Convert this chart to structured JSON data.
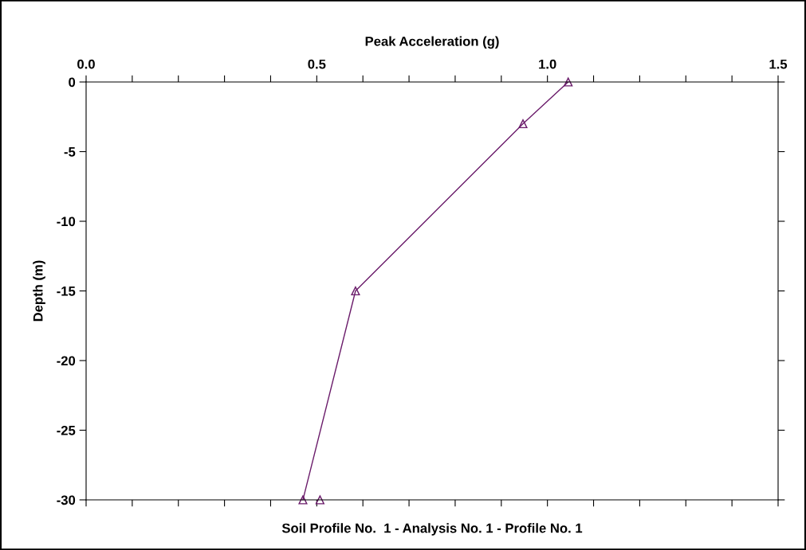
{
  "chart_data": {
    "type": "line",
    "xlabel": "Peak Acceleration (g)",
    "ylabel": "Depth (m)",
    "annotations": [
      "Soil Profile No.  1 - Analysis No. 1 - Profile No. 1"
    ],
    "series": [
      {
        "color": "#6a1b6a",
        "x": [
          1.045,
          0.947,
          0.584,
          0.47
        ],
        "values": [
          0,
          -3,
          -15,
          -30
        ]
      },
      {
        "type": "scatter",
        "color": "#6a1b6a",
        "x": [
          0.507
        ],
        "values": [
          -30
        ]
      }
    ],
    "marker": "triangle",
    "xlim": [
      0,
      1.5
    ],
    "ylim": [
      -30,
      0
    ],
    "xticks": [
      {
        "value": 0,
        "label": "0.0"
      },
      {
        "value": 0.1,
        "label": null
      },
      {
        "value": 0.2,
        "label": null
      },
      {
        "value": 0.3,
        "label": null
      },
      {
        "value": 0.4,
        "label": null
      },
      {
        "value": 0.5,
        "label": "0.5"
      },
      {
        "value": 0.6,
        "label": null
      },
      {
        "value": 0.7,
        "label": null
      },
      {
        "value": 0.8,
        "label": null
      },
      {
        "value": 0.9,
        "label": null
      },
      {
        "value": 1.0,
        "label": "1.0"
      },
      {
        "value": 1.1,
        "label": null
      },
      {
        "value": 1.2,
        "label": null
      },
      {
        "value": 1.3,
        "label": null
      },
      {
        "value": 1.4,
        "label": null
      },
      {
        "value": 1.5,
        "label": "1.5"
      }
    ],
    "yticks": [
      -30,
      -25,
      -20,
      -15,
      -10,
      -5,
      0
    ],
    "grid": false,
    "legend": false
  }
}
